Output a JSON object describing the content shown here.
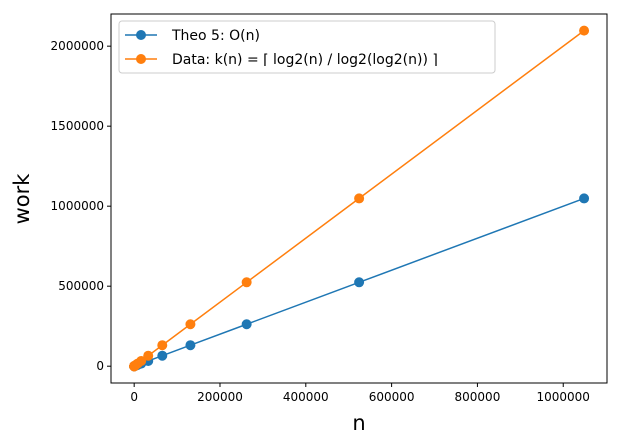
{
  "chart_data": {
    "type": "line",
    "title": "",
    "xlabel": "n",
    "ylabel": "work",
    "xlim": [
      -54000,
      1102000
    ],
    "ylim": [
      -105000,
      2201000
    ],
    "xticks": [
      0,
      200000,
      400000,
      600000,
      800000,
      1000000
    ],
    "xtick_labels": [
      "0",
      "200000",
      "400000",
      "600000",
      "800000",
      "1000000"
    ],
    "yticks": [
      0,
      500000,
      1000000,
      1500000,
      2000000
    ],
    "ytick_labels": [
      "0",
      "500000",
      "1000000",
      "1500000",
      "2000000"
    ],
    "grid": false,
    "legend_position": "top-left",
    "series": [
      {
        "name": "Theo 5: O(n)",
        "color": "#1f77b4",
        "marker": "circle",
        "x": [
          2,
          4,
          8,
          16,
          32,
          64,
          128,
          256,
          512,
          1024,
          2048,
          4096,
          8192,
          16384,
          32768,
          65536,
          131072,
          262144,
          524288,
          1048576
        ],
        "y": [
          2,
          4,
          8,
          16,
          32,
          64,
          128,
          256,
          512,
          1024,
          2048,
          4096,
          8192,
          16384,
          32768,
          65536,
          131072,
          262144,
          524288,
          1048576
        ]
      },
      {
        "name": "Data: k(n) = ⌈ log2(n) / log2(log2(n)) ⌉",
        "color": "#ff7f0e",
        "marker": "circle",
        "x": [
          2,
          4,
          8,
          16,
          32,
          64,
          128,
          256,
          512,
          1024,
          2048,
          4096,
          8192,
          16384,
          32768,
          65536,
          131072,
          262144,
          524288,
          1048576
        ],
        "y": [
          4,
          8,
          16,
          32,
          64,
          128,
          256,
          512,
          1024,
          2048,
          4096,
          8192,
          16384,
          32768,
          65536,
          131072,
          262144,
          524288,
          1048576,
          2097152
        ]
      }
    ]
  }
}
